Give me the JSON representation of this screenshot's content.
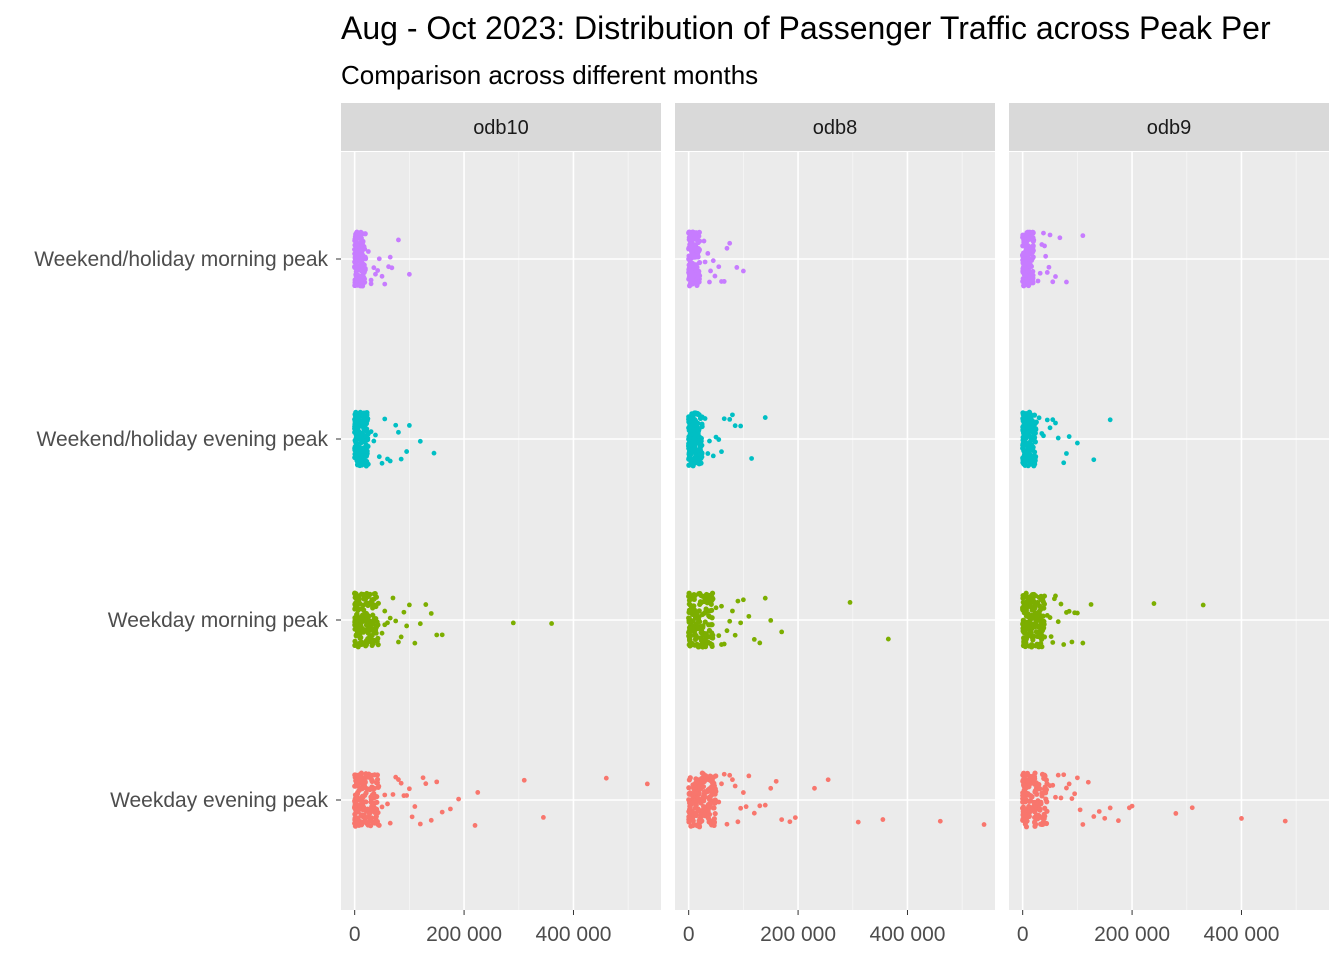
{
  "chart_data": {
    "type": "scatter",
    "title": "Aug - Oct 2023: Distribution of Passenger Traffic across Peak Per",
    "subtitle": "Comparison across different months",
    "xlabel": "",
    "ylabel": "",
    "xlim": [
      -25000,
      560000
    ],
    "x_ticks": [
      0,
      200000,
      400000
    ],
    "x_tick_labels": [
      "0",
      "200 000",
      "400 000"
    ],
    "categories": [
      "Weekday evening peak",
      "Weekday morning peak",
      "Weekend/holiday evening peak",
      "Weekend/holiday morning peak"
    ],
    "grid": true,
    "legend": "none",
    "panels": [
      "odb10",
      "odb8",
      "odb9"
    ],
    "series": [
      {
        "category": "Weekend/holiday morning peak",
        "color": "#C77CFF",
        "panels": {
          "odb10": {
            "bulk_max": 20000,
            "outliers": [
              30000,
              38000,
              42000,
              50000,
              55000,
              62000,
              68000,
              80000,
              100000,
              25000,
              35000,
              45000,
              30000,
              65000
            ]
          },
          "odb8": {
            "bulk_max": 20000,
            "outliers": [
              28000,
              35000,
              40000,
              48000,
              55000,
              65000,
              75000,
              88000,
              100000,
              30000,
              38000,
              45000,
              60000,
              70000
            ]
          },
          "odb9": {
            "bulk_max": 20000,
            "outliers": [
              28000,
              35000,
              40000,
              45000,
              50000,
              60000,
              68000,
              80000,
              110000,
              32000,
              42000,
              55000,
              38000,
              48000
            ]
          }
        }
      },
      {
        "category": "Weekend/holiday evening peak",
        "color": "#00BFC4",
        "panels": {
          "odb10": {
            "bulk_max": 25000,
            "outliers": [
              30000,
              38000,
              45000,
              55000,
              65000,
              75000,
              85000,
              95000,
              120000,
              145000,
              35000,
              50000,
              60000,
              80000,
              100000
            ]
          },
          "odb8": {
            "bulk_max": 25000,
            "outliers": [
              30000,
              38000,
              45000,
              55000,
              65000,
              75000,
              85000,
              95000,
              115000,
              140000,
              35000,
              50000,
              60000,
              80000
            ]
          },
          "odb9": {
            "bulk_max": 25000,
            "outliers": [
              30000,
              38000,
              45000,
              55000,
              65000,
              75000,
              85000,
              100000,
              130000,
              160000,
              35000,
              50000,
              60000,
              80000
            ]
          }
        }
      },
      {
        "category": "Weekday morning peak",
        "color": "#7CAE00",
        "panels": {
          "odb10": {
            "bulk_max": 45000,
            "outliers": [
              50000,
              55000,
              60000,
              65000,
              70000,
              80000,
              90000,
              100000,
              110000,
              120000,
              130000,
              140000,
              160000,
              290000,
              360000,
              55000,
              75000,
              85000,
              95000,
              150000
            ]
          },
          "odb8": {
            "bulk_max": 45000,
            "outliers": [
              50000,
              55000,
              60000,
              65000,
              70000,
              80000,
              90000,
              100000,
              110000,
              120000,
              130000,
              150000,
              170000,
              295000,
              365000,
              60000,
              75000,
              85000,
              95000,
              140000
            ]
          },
          "odb9": {
            "bulk_max": 40000,
            "outliers": [
              45000,
              50000,
              55000,
              60000,
              65000,
              70000,
              80000,
              90000,
              100000,
              110000,
              125000,
              240000,
              330000,
              52000,
              58000,
              75000,
              85000,
              95000
            ]
          }
        }
      },
      {
        "category": "Weekday evening peak",
        "color": "#F8766D",
        "panels": {
          "odb10": {
            "bulk_max": 45000,
            "outliers": [
              50000,
              55000,
              60000,
              70000,
              80000,
              90000,
              100000,
              110000,
              120000,
              130000,
              150000,
              175000,
              190000,
              220000,
              225000,
              310000,
              345000,
              460000,
              535000,
              65000,
              85000,
              95000,
              140000,
              160000,
              75000,
              105000,
              125000
            ]
          },
          "odb8": {
            "bulk_max": 50000,
            "outliers": [
              55000,
              60000,
              70000,
              80000,
              90000,
              100000,
              110000,
              120000,
              130000,
              150000,
              160000,
              185000,
              195000,
              230000,
              255000,
              310000,
              355000,
              460000,
              540000,
              65000,
              85000,
              95000,
              140000,
              170000,
              75000,
              105000
            ]
          },
          "odb9": {
            "bulk_max": 45000,
            "outliers": [
              50000,
              55000,
              60000,
              70000,
              80000,
              90000,
              100000,
              110000,
              120000,
              130000,
              150000,
              175000,
              195000,
              200000,
              280000,
              310000,
              400000,
              480000,
              65000,
              85000,
              95000,
              140000,
              160000,
              75000,
              105000
            ]
          }
        }
      }
    ]
  }
}
